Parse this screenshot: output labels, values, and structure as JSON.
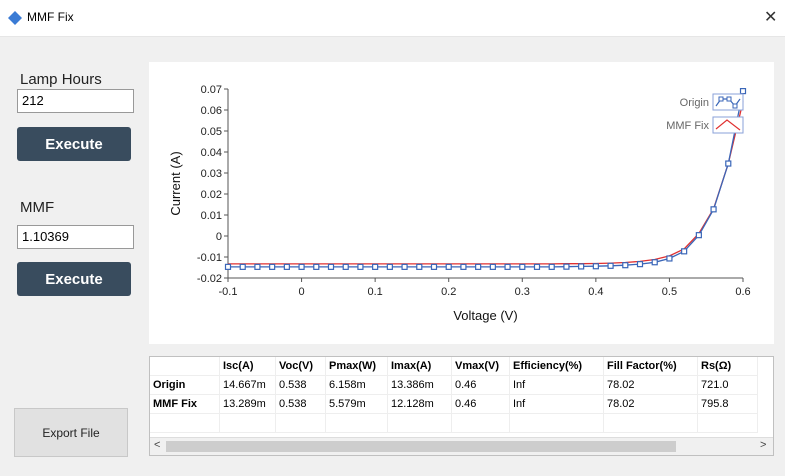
{
  "window": {
    "title": "MMF Fix",
    "close_glyph": "✕"
  },
  "left": {
    "lamp_label": "Lamp Hours",
    "lamp_value": "212",
    "execute1": "Execute",
    "mmf_label": "MMF",
    "mmf_value": "1.10369",
    "execute2": "Execute",
    "export": "Export File"
  },
  "chart_data": {
    "type": "line",
    "xlabel": "Voltage (V)",
    "ylabel": "Current (A)",
    "xlim": [
      -0.1,
      0.6
    ],
    "ylim": [
      -0.02,
      0.07
    ],
    "xticks": [
      "-0.1",
      "0",
      "0.1",
      "0.2",
      "0.3",
      "0.4",
      "0.5",
      "0.6"
    ],
    "yticks": [
      "-0.02",
      "-0.01",
      "0",
      "0.01",
      "0.02",
      "0.03",
      "0.04",
      "0.05",
      "0.06",
      "0.07"
    ],
    "legend_placement": "top-right",
    "series": [
      {
        "name": "Origin",
        "color": "#3a66b8",
        "marker": "square",
        "x": [
          -0.1,
          -0.08,
          -0.06,
          -0.04,
          -0.02,
          0,
          0.02,
          0.04,
          0.06,
          0.08,
          0.1,
          0.12,
          0.14,
          0.16,
          0.18,
          0.2,
          0.22,
          0.24,
          0.26,
          0.28,
          0.3,
          0.32,
          0.34,
          0.36,
          0.38,
          0.4,
          0.42,
          0.44,
          0.46,
          0.48,
          0.5,
          0.52,
          0.54,
          0.56,
          0.58,
          0.6
        ],
        "y": [
          -0.0147,
          -0.0147,
          -0.0147,
          -0.0147,
          -0.0147,
          -0.0147,
          -0.0147,
          -0.0147,
          -0.0147,
          -0.0147,
          -0.0147,
          -0.0147,
          -0.0147,
          -0.0147,
          -0.0147,
          -0.0147,
          -0.0147,
          -0.0147,
          -0.0147,
          -0.0147,
          -0.0147,
          -0.0147,
          -0.0147,
          -0.0146,
          -0.0145,
          -0.0144,
          -0.0142,
          -0.0139,
          -0.0134,
          -0.0125,
          -0.0107,
          -0.0073,
          0.0004,
          0.0127,
          0.0345,
          0.069
        ]
      },
      {
        "name": "MMF Fix",
        "color": "#e03030",
        "x": [
          -0.1,
          -0.08,
          -0.06,
          -0.04,
          -0.02,
          0,
          0.02,
          0.04,
          0.06,
          0.08,
          0.1,
          0.12,
          0.14,
          0.16,
          0.18,
          0.2,
          0.22,
          0.24,
          0.26,
          0.28,
          0.3,
          0.32,
          0.34,
          0.36,
          0.38,
          0.4,
          0.42,
          0.44,
          0.46,
          0.48,
          0.5,
          0.52,
          0.54,
          0.56,
          0.58,
          0.6
        ],
        "y": [
          -0.0133,
          -0.0133,
          -0.0133,
          -0.0133,
          -0.0133,
          -0.0133,
          -0.0133,
          -0.0133,
          -0.0133,
          -0.0133,
          -0.0133,
          -0.0133,
          -0.0133,
          -0.0133,
          -0.0133,
          -0.0133,
          -0.0133,
          -0.0133,
          -0.0133,
          -0.0133,
          -0.0133,
          -0.0133,
          -0.0133,
          -0.0132,
          -0.0132,
          -0.0131,
          -0.0129,
          -0.0126,
          -0.0121,
          -0.0112,
          -0.0095,
          -0.0062,
          0.0012,
          0.013,
          0.0345,
          0.064
        ]
      }
    ]
  },
  "table": {
    "headers": [
      "",
      "Isc(A)",
      "Voc(V)",
      "Pmax(W)",
      "Imax(A)",
      "Vmax(V)",
      "Efficiency(%)",
      "Fill Factor(%)",
      "Rs(Ω)"
    ],
    "rows": [
      [
        "Origin",
        "14.667m",
        "0.538",
        "6.158m",
        "13.386m",
        "0.46",
        "Inf",
        "78.02",
        "721.0"
      ],
      [
        "MMF Fix",
        "13.289m",
        "0.538",
        "5.579m",
        "12.128m",
        "0.46",
        "Inf",
        "78.02",
        "795.8"
      ],
      [
        "",
        "",
        "",
        "",
        "",
        "",
        "",
        "",
        ""
      ]
    ],
    "scroll_left": "<",
    "scroll_right": ">"
  },
  "colors": {
    "button": "#394c5e",
    "origin": "#3a66b8",
    "mmf": "#e03030"
  }
}
